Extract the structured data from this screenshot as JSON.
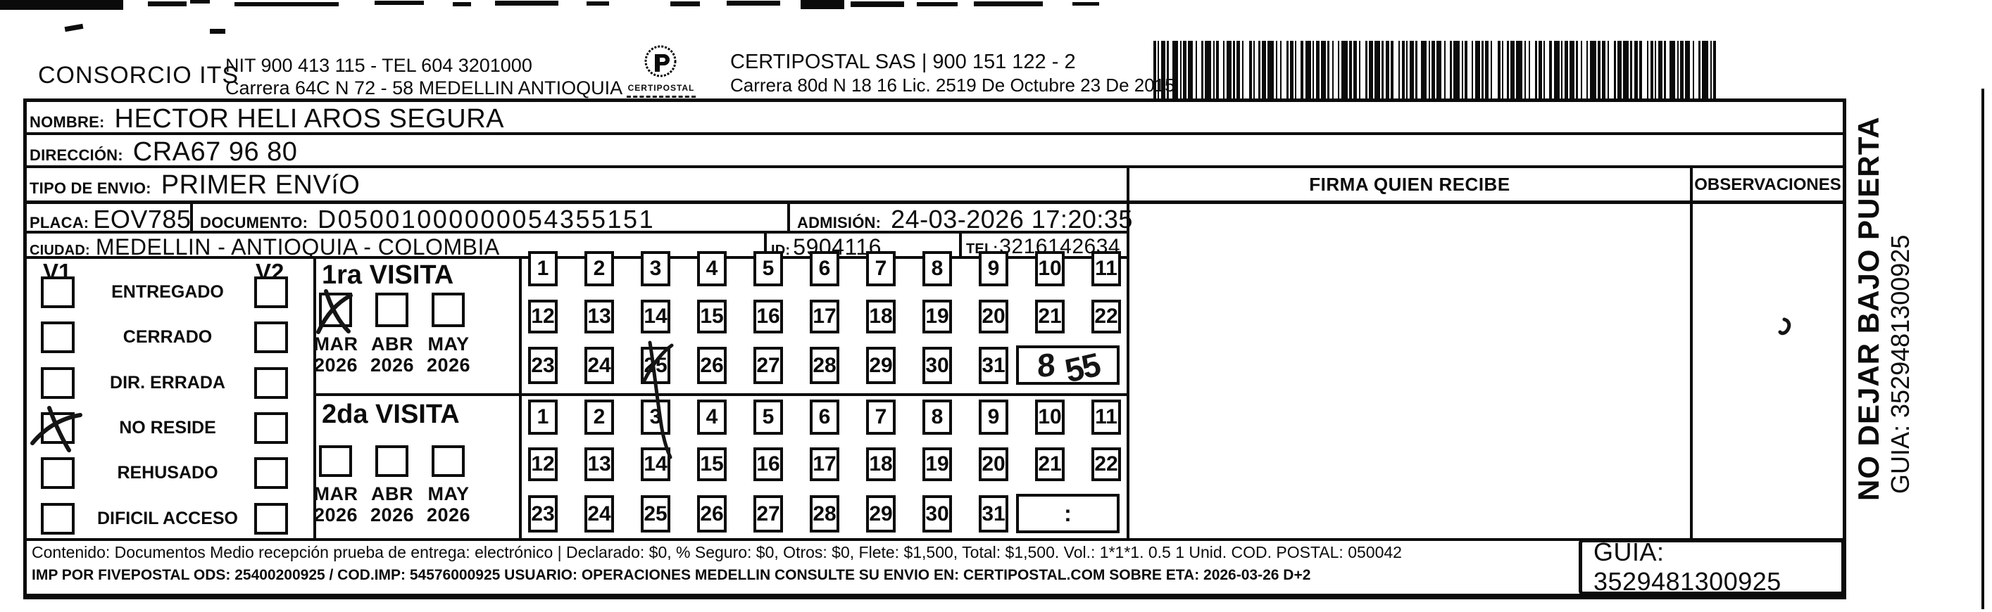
{
  "header": {
    "company_name": "CONSORCIO ITS",
    "company_nit_tel": "NIT 900 413 115 - TEL 604 3201000",
    "company_address": "Carrera 64C N 72 - 58 MEDELLIN ANTIOQUIA",
    "logo_caption": "CERTIPOSTAL",
    "operator_name_nit": "CERTIPOSTAL SAS | 900 151 122 - 2",
    "operator_address_lic": "Carrera 80d N 18 16  Lic. 2519 De Octubre 23 De 2015"
  },
  "shipment": {
    "nombre_label": "NOMBRE:",
    "nombre_value": "HECTOR HELI AROS SEGURA",
    "direccion_label": "DIRECCIÓN:",
    "direccion_value": "CRA67 96 80",
    "tipo_envio_label": "TIPO DE ENVIO:",
    "tipo_envio_value": "PRIMER ENVíO",
    "placa_label": "PLACA:",
    "placa_value": "EOV785",
    "documento_label": "DOCUMENTO:",
    "documento_value": "D05001000000054355151",
    "admision_label": "ADMISIÓN:",
    "admision_value": "24-03-2026 17:20:35",
    "ciudad_label": "CIUDAD:",
    "ciudad_value": "MEDELLIN - ANTIOQUIA - COLOMBIA",
    "id_label": "ID:",
    "id_value": "5904116",
    "tel_label": "TEL:",
    "tel_value": "3216142634"
  },
  "columns": {
    "firma_header": "FIRMA QUIEN RECIBE",
    "observaciones_header": "OBSERVACIONES"
  },
  "status_panel": {
    "v1_label": "V1",
    "v2_label": "V2",
    "options": [
      "ENTREGADO",
      "CERRADO",
      "DIR. ERRADA",
      "NO RESIDE",
      "REHUSADO",
      "DIFICIL ACCESO"
    ],
    "v1_checked_option": "NO RESIDE"
  },
  "visita1": {
    "title": "1ra VISITA",
    "months": [
      {
        "label": "MAR",
        "year": "2026",
        "checked": true
      },
      {
        "label": "ABR",
        "year": "2026",
        "checked": false
      },
      {
        "label": "MAY",
        "year": "2026",
        "checked": false
      }
    ],
    "day_rows": [
      [
        "1",
        "2",
        "3",
        "4",
        "5",
        "6",
        "7",
        "8",
        "9",
        "10",
        "11"
      ],
      [
        "12",
        "13",
        "14",
        "15",
        "16",
        "17",
        "18",
        "19",
        "20",
        "21",
        "22"
      ],
      [
        "23",
        "24",
        "25",
        "26",
        "27",
        "28",
        "29",
        "30",
        "31"
      ]
    ],
    "marked_day": "25",
    "handwritten_time": "8:55",
    "time_hour": "8",
    "time_minutes": "55"
  },
  "visita2": {
    "title": "2da VISITA",
    "months": [
      {
        "label": "MAR",
        "year": "2026",
        "checked": false
      },
      {
        "label": "ABR",
        "year": "2026",
        "checked": false
      },
      {
        "label": "MAY",
        "year": "2026",
        "checked": false
      }
    ],
    "day_rows": [
      [
        "1",
        "2",
        "3",
        "4",
        "5",
        "6",
        "7",
        "8",
        "9",
        "10",
        "11"
      ],
      [
        "12",
        "13",
        "14",
        "15",
        "16",
        "17",
        "18",
        "19",
        "20",
        "21",
        "22"
      ],
      [
        "23",
        "24",
        "25",
        "26",
        "27",
        "28",
        "29",
        "30",
        "31"
      ]
    ],
    "time_placeholder": ":"
  },
  "side_note": {
    "line1": "NO DEJAR BAJO PUERTA",
    "line2": "GUIA: 3529481300925"
  },
  "footer": {
    "line1": "Contenido: Documentos Medio recepción prueba de entrega: electrónico | Declarado: $0, % Seguro: $0, Otros: $0, Flete: $1,500, Total: $1,500. Vol.: 1*1*1. 0.5  1 Unid. COD. POSTAL: 050042",
    "line2": "IMP POR FIVEPOSTAL ODS: 25400200925 / COD.IMP: 54576000925 USUARIO: OPERACIONES MEDELLIN CONSULTE SU ENVIO EN: CERTIPOSTAL.COM SOBRE ETA: 2026-03-26 D+2",
    "guia_box": "GUIA: 3529481300925"
  },
  "colors": {
    "ink": "#0b0b0b",
    "paper": "#ffffff"
  }
}
